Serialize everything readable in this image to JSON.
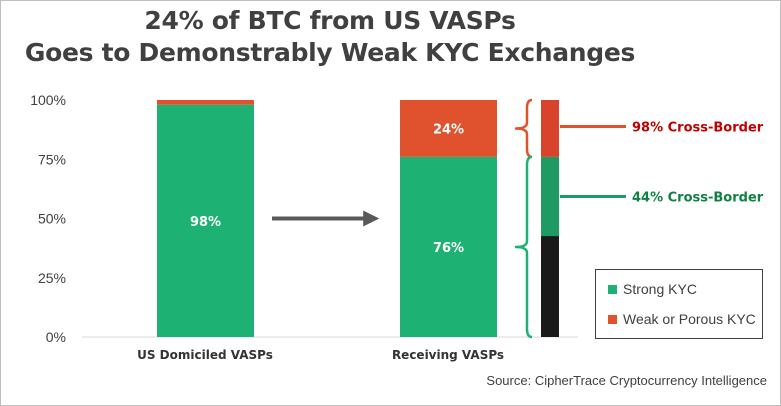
{
  "chart_data": {
    "type": "bar",
    "stacked": true,
    "title_line1": "24% of BTC from US VASPs",
    "title_line2": "Goes to Demonstrably Weak KYC Exchanges",
    "categories": [
      "US  Domiciled VASPs",
      "Receiving VASPs"
    ],
    "series": [
      {
        "name": "Strong KYC",
        "color": "#1db273",
        "values": [
          98,
          76
        ],
        "labels": [
          "98%",
          "76%"
        ]
      },
      {
        "name": "Weak or Porous KYC",
        "color": "#e0522d",
        "values": [
          2,
          24
        ],
        "labels": [
          "",
          "24%"
        ]
      }
    ],
    "ylim": [
      0,
      100
    ],
    "yticks": [
      "0%",
      "25%",
      "50%",
      "75%",
      "100%"
    ],
    "ytick_values": [
      0,
      25,
      50,
      75,
      100
    ],
    "grid": false,
    "legend_position": "bottom-right",
    "breakdown": {
      "weak_segment": {
        "cross_border_value": 24,
        "color": "#d9422b"
      },
      "strong_segment": {
        "cross_border_value": 33.4,
        "domestic_value": 42.6,
        "color": "#1e9a63",
        "domestic_color": "#1a1a1a"
      }
    },
    "annotations": [
      {
        "text": "98% Cross-Border",
        "color": "#c00000"
      },
      {
        "text": "44% Cross-Border",
        "color": "#118043"
      }
    ],
    "source": "Source: CipherTrace Cryptocurrency Intelligence"
  }
}
